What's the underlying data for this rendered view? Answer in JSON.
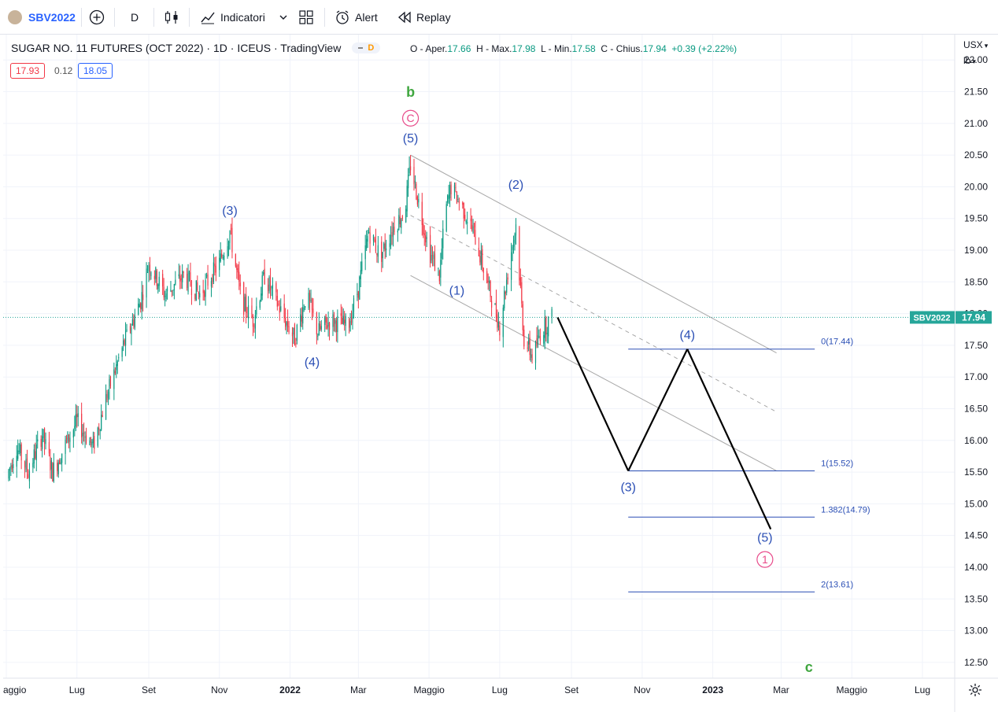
{
  "toolbar": {
    "symbol": "SBV2022",
    "interval": "D",
    "indicators_label": "Indicatori",
    "alert_label": "Alert",
    "replay_label": "Replay"
  },
  "legend": {
    "title": "SUGAR NO. 11 FUTURES (OCT 2022) · 1D · ICEUS · TradingView",
    "badge": "D",
    "open_label": "O - Aper.",
    "open": "17.66",
    "high_label": "H - Max.",
    "high": "17.98",
    "low_label": "L - Min.",
    "low": "17.58",
    "close_label": "C - Chius.",
    "close": "17.94",
    "change": "+0.39",
    "change_pct": "(+2.22%)",
    "sell": "17.93",
    "spread": "0.12",
    "buy": "18.05"
  },
  "price_axis": {
    "currency": "USX",
    "unit": "lb"
  },
  "colors": {
    "up": "#089981",
    "down": "#f23645",
    "wave": "#2b4fb5",
    "pink": "#e84a8a",
    "green": "#3fa63f",
    "price_tag": "#26a69a"
  },
  "chart_data": {
    "type": "candlestick",
    "title": "SUGAR NO. 11 FUTURES (OCT 2022) · 1D · ICEUS · TradingView",
    "symbol": "SBV2022",
    "last_price": 17.94,
    "y_range": [
      12.25,
      22.4
    ],
    "y_ticks": [
      22.0,
      21.5,
      21.0,
      20.5,
      20.0,
      19.5,
      19.0,
      18.5,
      18.0,
      17.5,
      17.0,
      16.5,
      16.0,
      15.5,
      15.0,
      14.5,
      14.0,
      13.5,
      13.0,
      12.5
    ],
    "x_ticks": [
      {
        "label": "aggio",
        "date": "2021-05-01"
      },
      {
        "label": "Lug",
        "date": "2021-07-01"
      },
      {
        "label": "Set",
        "date": "2021-09-01"
      },
      {
        "label": "Nov",
        "date": "2021-11-01"
      },
      {
        "label": "2022",
        "date": "2022-01-01",
        "bold": true
      },
      {
        "label": "Mar",
        "date": "2022-03-01"
      },
      {
        "label": "Maggio",
        "date": "2022-05-01"
      },
      {
        "label": "Lug",
        "date": "2022-07-01"
      },
      {
        "label": "Set",
        "date": "2022-09-01"
      },
      {
        "label": "Nov",
        "date": "2022-11-01"
      },
      {
        "label": "2023",
        "date": "2023-01-01",
        "bold": true
      },
      {
        "label": "Mar",
        "date": "2023-03-01"
      },
      {
        "label": "Maggio",
        "date": "2023-05-01"
      },
      {
        "label": "Lug",
        "date": "2023-07-01"
      }
    ],
    "price_path": [
      {
        "date": "2021-05-01",
        "price": 15.4
      },
      {
        "date": "2021-05-10",
        "price": 15.9
      },
      {
        "date": "2021-05-20",
        "price": 15.5
      },
      {
        "date": "2021-06-01",
        "price": 16.1
      },
      {
        "date": "2021-06-10",
        "price": 15.5
      },
      {
        "date": "2021-06-20",
        "price": 15.9
      },
      {
        "date": "2021-07-01",
        "price": 16.3
      },
      {
        "date": "2021-07-15",
        "price": 15.9
      },
      {
        "date": "2021-07-25",
        "price": 16.6
      },
      {
        "date": "2021-08-10",
        "price": 17.5
      },
      {
        "date": "2021-08-25",
        "price": 18.2
      },
      {
        "date": "2021-09-01",
        "price": 18.8
      },
      {
        "date": "2021-09-15",
        "price": 18.3
      },
      {
        "date": "2021-10-01",
        "price": 18.6
      },
      {
        "date": "2021-10-15",
        "price": 18.3
      },
      {
        "date": "2021-11-01",
        "price": 18.8
      },
      {
        "date": "2021-11-10",
        "price": 19.3
      },
      {
        "date": "2021-11-20",
        "price": 18.2
      },
      {
        "date": "2021-11-30",
        "price": 17.9
      },
      {
        "date": "2021-12-10",
        "price": 18.6
      },
      {
        "date": "2021-12-25",
        "price": 18.0
      },
      {
        "date": "2022-01-05",
        "price": 17.6
      },
      {
        "date": "2022-01-15",
        "price": 18.3
      },
      {
        "date": "2022-01-25",
        "price": 17.7
      },
      {
        "date": "2022-02-05",
        "price": 17.9
      },
      {
        "date": "2022-02-20",
        "price": 17.8
      },
      {
        "date": "2022-03-01",
        "price": 18.4
      },
      {
        "date": "2022-03-10",
        "price": 19.3
      },
      {
        "date": "2022-03-20",
        "price": 18.9
      },
      {
        "date": "2022-04-01",
        "price": 19.4
      },
      {
        "date": "2022-04-10",
        "price": 19.6
      },
      {
        "date": "2022-04-15",
        "price": 20.35
      },
      {
        "date": "2022-04-25",
        "price": 19.5
      },
      {
        "date": "2022-05-01",
        "price": 19.0
      },
      {
        "date": "2022-05-10",
        "price": 18.6
      },
      {
        "date": "2022-05-15",
        "price": 19.6
      },
      {
        "date": "2022-05-20",
        "price": 20.0
      },
      {
        "date": "2022-06-01",
        "price": 19.6
      },
      {
        "date": "2022-06-10",
        "price": 19.2
      },
      {
        "date": "2022-06-20",
        "price": 18.5
      },
      {
        "date": "2022-07-01",
        "price": 17.8
      },
      {
        "date": "2022-07-10",
        "price": 18.9
      },
      {
        "date": "2022-07-15",
        "price": 19.4
      },
      {
        "date": "2022-07-22",
        "price": 17.6
      },
      {
        "date": "2022-07-30",
        "price": 17.3
      },
      {
        "date": "2022-08-05",
        "price": 17.7
      },
      {
        "date": "2022-08-15",
        "price": 17.94
      }
    ],
    "projection": [
      {
        "date": "2022-08-20",
        "price": 17.94
      },
      {
        "date": "2022-10-20",
        "price": 15.52
      },
      {
        "date": "2022-12-10",
        "price": 17.44
      },
      {
        "date": "2023-02-20",
        "price": 14.6
      }
    ],
    "channel": {
      "upper": [
        {
          "date": "2022-04-15",
          "price": 20.5
        },
        {
          "date": "2023-02-25",
          "price": 17.38
        }
      ],
      "middle": [
        {
          "date": "2022-04-15",
          "price": 19.55
        },
        {
          "date": "2023-02-25",
          "price": 16.45
        }
      ],
      "lower": [
        {
          "date": "2022-04-15",
          "price": 18.6
        },
        {
          "date": "2023-02-25",
          "price": 15.52
        }
      ]
    },
    "fib_levels": [
      {
        "label": "0(17.44)",
        "price": 17.44
      },
      {
        "label": "1(15.52)",
        "price": 15.52
      },
      {
        "label": "1.382(14.79)",
        "price": 14.79
      },
      {
        "label": "2(13.61)",
        "price": 13.61
      }
    ],
    "fib_range": {
      "from": "2022-10-20",
      "to": "2023-03-30"
    },
    "wave_labels": [
      {
        "text": "b",
        "date": "2022-04-15",
        "price": 21.42,
        "color": "green"
      },
      {
        "text": "C",
        "date": "2022-04-15",
        "price": 21.02,
        "color": "pink",
        "circled": true
      },
      {
        "text": "(5)",
        "date": "2022-04-15",
        "price": 20.7,
        "color": "wave"
      },
      {
        "text": "(3)",
        "date": "2021-11-10",
        "price": 19.56,
        "color": "wave"
      },
      {
        "text": "(4)",
        "date": "2022-01-20",
        "price": 17.17,
        "color": "wave"
      },
      {
        "text": "(1)",
        "date": "2022-05-25",
        "price": 18.3,
        "color": "wave"
      },
      {
        "text": "(2)",
        "date": "2022-07-15",
        "price": 19.97,
        "color": "wave"
      },
      {
        "text": "(4)",
        "date": "2022-12-10",
        "price": 17.6,
        "color": "wave"
      },
      {
        "text": "(3)",
        "date": "2022-10-20",
        "price": 15.2,
        "color": "wave"
      },
      {
        "text": "(5)",
        "date": "2023-02-15",
        "price": 14.4,
        "color": "wave"
      },
      {
        "text": "1",
        "date": "2023-02-15",
        "price": 14.06,
        "color": "pink",
        "circled": true
      },
      {
        "text": "c",
        "date": "2023-03-25",
        "price": 12.35,
        "color": "green"
      }
    ]
  }
}
